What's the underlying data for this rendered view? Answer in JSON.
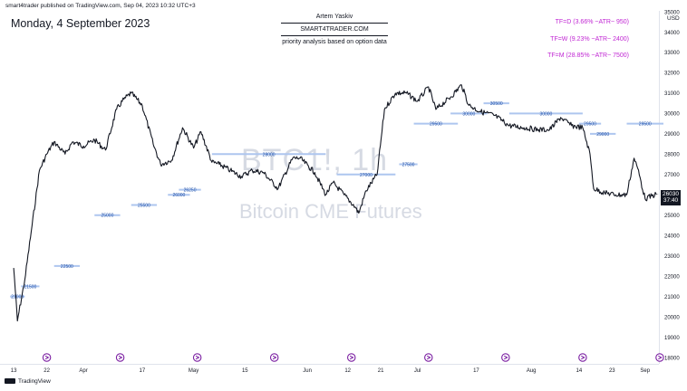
{
  "header": {
    "publisher": "smart4trader published on TradingView.com, Sep 04, 2023 10:32 UTC+3",
    "date_title": "Monday, 4 September 2023"
  },
  "info_box": {
    "author": "Artem Yaskiv",
    "site": "SMART4TRADER.COM",
    "description": "priority analysis based on option data"
  },
  "timeframes": [
    "TF=D (3.66% ~ATR~ 950)",
    "TF=W (9.23% ~ATR~ 2400)",
    "TF=M (28.85% ~ATR~ 7500)"
  ],
  "watermark": {
    "symbol": "BTC1!, 1h",
    "description": "Bitcoin CME Futures"
  },
  "footer": {
    "brand": "TradingView"
  },
  "colors": {
    "accent_text": "#c026d3",
    "level_line": "#aec6ef",
    "candle": "#131722",
    "watermark": "#d6dae3",
    "event_marker": "#7b1fa2"
  },
  "chart_data": {
    "type": "line",
    "ylabel": "USD",
    "y_range": [
      18000,
      35000
    ],
    "y_ticks": [
      18000,
      19000,
      20000,
      21000,
      22000,
      23000,
      24000,
      25000,
      26000,
      27000,
      28000,
      29000,
      30000,
      31000,
      32000,
      33000,
      34000,
      35000
    ],
    "y_tick_labels": [
      "18000",
      "19000",
      "20000",
      "21000",
      "22000",
      "23000",
      "24000",
      "25000",
      "26000",
      "27000",
      "28000",
      "29000",
      "30000",
      "31000",
      "32000",
      "33000",
      "34000",
      "35000"
    ],
    "x_tick_labels": [
      "13",
      "22",
      "Apr",
      "17",
      "May",
      "15",
      "Jun",
      "12",
      "21",
      "Jul",
      "17",
      "Aug",
      "14",
      "23",
      "Sep"
    ],
    "current_price": {
      "value": 26030,
      "label": "26030",
      "countdown": "37:40"
    },
    "series": [
      {
        "x": [
          "2023-03-13",
          "2023-03-14",
          "2023-03-16",
          "2023-03-18",
          "2023-03-20",
          "2023-03-22",
          "2023-03-24",
          "2023-03-27",
          "2023-03-29",
          "2023-04-01",
          "2023-04-04",
          "2023-04-07",
          "2023-04-10",
          "2023-04-12",
          "2023-04-14",
          "2023-04-17",
          "2023-04-20",
          "2023-04-22",
          "2023-04-25",
          "2023-04-28",
          "2023-05-01",
          "2023-05-03",
          "2023-05-06",
          "2023-05-08",
          "2023-05-11",
          "2023-05-14",
          "2023-05-17",
          "2023-05-20",
          "2023-05-24",
          "2023-05-28",
          "2023-05-30",
          "2023-06-03",
          "2023-06-06",
          "2023-06-08",
          "2023-06-11",
          "2023-06-14",
          "2023-06-15",
          "2023-06-17",
          "2023-06-20",
          "2023-06-22",
          "2023-06-25",
          "2023-06-28",
          "2023-07-01",
          "2023-07-04",
          "2023-07-06",
          "2023-07-10",
          "2023-07-13",
          "2023-07-15",
          "2023-07-18",
          "2023-07-22",
          "2023-07-26",
          "2023-07-30",
          "2023-08-03",
          "2023-08-06",
          "2023-08-09",
          "2023-08-12",
          "2023-08-15",
          "2023-08-17",
          "2023-08-18",
          "2023-08-21",
          "2023-08-24",
          "2023-08-27",
          "2023-08-29",
          "2023-08-30",
          "2023-09-01",
          "2023-09-04"
        ],
        "values": [
          22400,
          19800,
          21800,
          24500,
          27200,
          28000,
          28600,
          28000,
          28600,
          28400,
          28700,
          28200,
          30200,
          30700,
          31000,
          30400,
          28500,
          27500,
          27700,
          29300,
          28300,
          29100,
          27600,
          27500,
          27200,
          26900,
          27200,
          27100,
          26300,
          27800,
          27800,
          27100,
          26000,
          26600,
          26000,
          25400,
          25100,
          26200,
          27000,
          30200,
          31000,
          31000,
          30600,
          31300,
          30200,
          30800,
          31400,
          30400,
          30100,
          29900,
          29400,
          29300,
          29200,
          29200,
          29800,
          29400,
          29300,
          28000,
          26300,
          26100,
          26000,
          26000,
          27800,
          27300,
          25800,
          26030
        ]
      }
    ],
    "levels": [
      {
        "value": 21000,
        "label": "21000",
        "x_start": "2023-03-12",
        "x_end": "2023-03-16"
      },
      {
        "value": 21500,
        "label": "21500",
        "x_start": "2023-03-15",
        "x_end": "2023-03-20"
      },
      {
        "value": 22500,
        "label": "22500",
        "x_start": "2023-03-24",
        "x_end": "2023-03-31"
      },
      {
        "value": 25000,
        "label": "25000",
        "x_start": "2023-04-04",
        "x_end": "2023-04-11"
      },
      {
        "value": 25500,
        "label": "25500",
        "x_start": "2023-04-14",
        "x_end": "2023-04-21"
      },
      {
        "value": 26000,
        "label": "26000",
        "x_start": "2023-04-24",
        "x_end": "2023-04-30"
      },
      {
        "value": 26250,
        "label": "26250",
        "x_start": "2023-04-27",
        "x_end": "2023-05-03"
      },
      {
        "value": 28000,
        "label": "28000",
        "x_start": "2023-05-06",
        "x_end": "2023-06-06"
      },
      {
        "value": 27000,
        "label": "27000",
        "x_start": "2023-06-09",
        "x_end": "2023-06-25"
      },
      {
        "value": 27500,
        "label": "27500",
        "x_start": "2023-06-26",
        "x_end": "2023-07-01"
      },
      {
        "value": 29500,
        "label": "29500",
        "x_start": "2023-06-30",
        "x_end": "2023-07-12"
      },
      {
        "value": 30000,
        "label": "30000",
        "x_start": "2023-07-10",
        "x_end": "2023-07-20"
      },
      {
        "value": 30500,
        "label": "30500",
        "x_start": "2023-07-19",
        "x_end": "2023-07-26"
      },
      {
        "value": 30000,
        "label": "30000",
        "x_start": "2023-07-26",
        "x_end": "2023-08-15"
      },
      {
        "value": 29500,
        "label": "29500",
        "x_start": "2023-08-14",
        "x_end": "2023-08-20"
      },
      {
        "value": 29000,
        "label": "29000",
        "x_start": "2023-08-17",
        "x_end": "2023-08-24"
      },
      {
        "value": 29500,
        "label": "29500",
        "x_start": "2023-08-27",
        "x_end": "2023-09-06"
      }
    ],
    "event_markers": [
      "2023-03-22",
      "2023-04-11",
      "2023-05-02",
      "2023-05-23",
      "2023-06-13",
      "2023-07-04",
      "2023-07-25",
      "2023-08-15",
      "2023-09-05"
    ],
    "grid": false,
    "legend": "none"
  }
}
